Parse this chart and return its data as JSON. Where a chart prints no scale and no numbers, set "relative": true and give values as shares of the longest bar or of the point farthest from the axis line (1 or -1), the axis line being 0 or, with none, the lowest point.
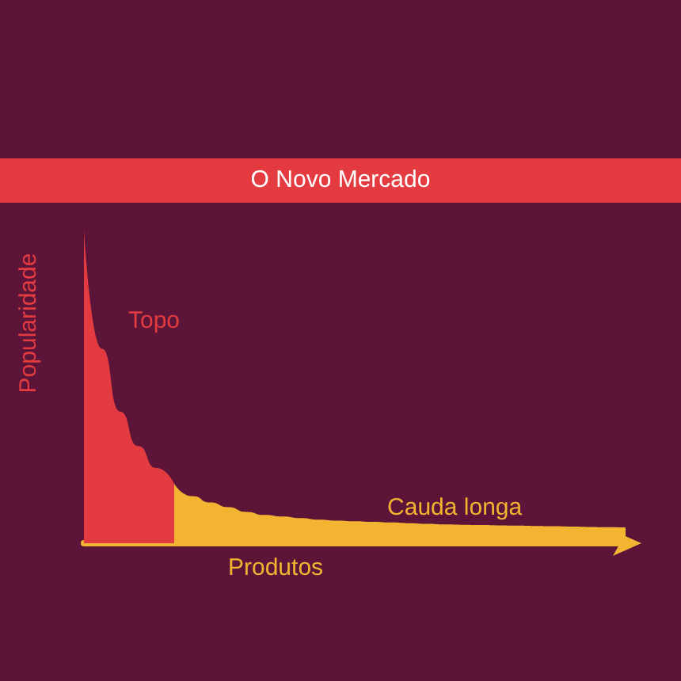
{
  "chart_data": {
    "type": "area",
    "title": "O Novo Mercado",
    "xlabel": "Produtos",
    "ylabel": "Popularidade",
    "relative": true,
    "legend": false,
    "grid": false,
    "categories": [
      null,
      null,
      null,
      null,
      null,
      null,
      null,
      null,
      null,
      null,
      null,
      null,
      null,
      null,
      null,
      null,
      null,
      null,
      null,
      null,
      null,
      null,
      null,
      null,
      null,
      null,
      null,
      null,
      null,
      null,
      null
    ],
    "series": [
      {
        "name": "Topo",
        "color": "#e33b40",
        "values": [
          1,
          0.62,
          0.42,
          0.31,
          0.24,
          0.19,
          null,
          null,
          null,
          null,
          null,
          null,
          null,
          null,
          null,
          null,
          null,
          null,
          null,
          null,
          null,
          null,
          null,
          null,
          null,
          null,
          null,
          null,
          null,
          null,
          null
        ]
      },
      {
        "name": "Cauda longa",
        "color": "#f2b431",
        "values": [
          null,
          null,
          null,
          null,
          null,
          0.19,
          0.15,
          0.13,
          0.115,
          0.1,
          0.09,
          0.085,
          0.08,
          0.075,
          0.072,
          0.07,
          0.068,
          0.066,
          0.064,
          0.062,
          0.06,
          0.059,
          0.058,
          0.057,
          0.056,
          0.055,
          0.054,
          0.053,
          0.052,
          0.051,
          0.05
        ]
      }
    ]
  }
}
